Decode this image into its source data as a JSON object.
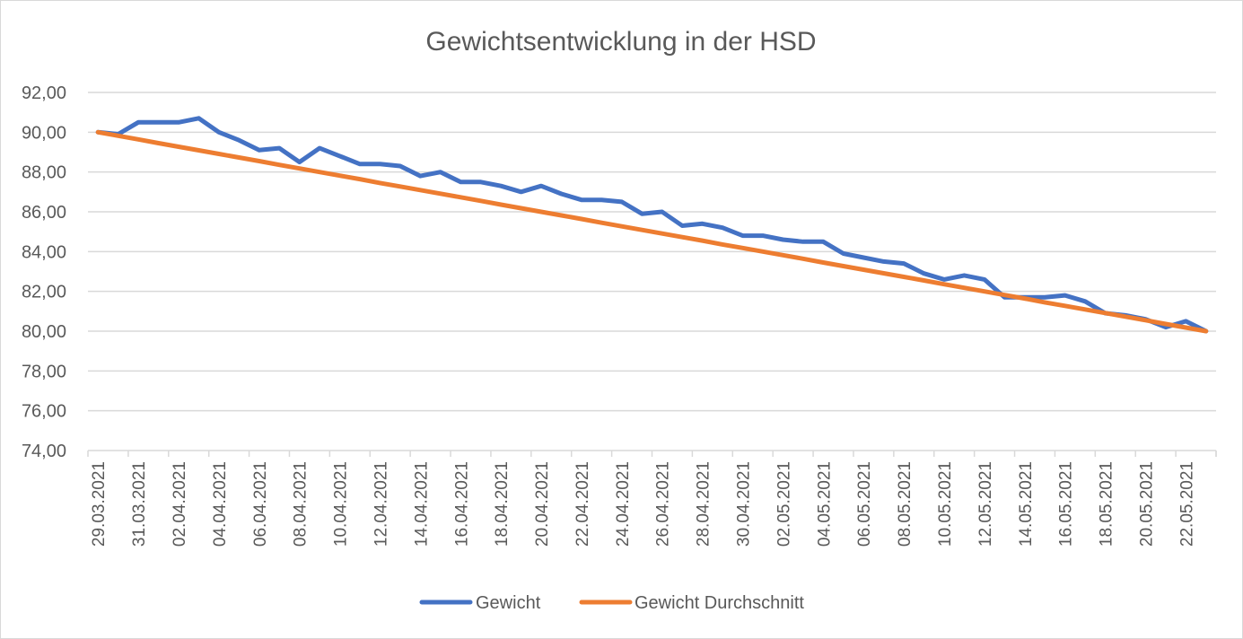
{
  "chart_data": {
    "type": "line",
    "title": "Gewichtsentwicklung in der HSD",
    "xlabel": "",
    "ylabel": "",
    "ylim": [
      74,
      92
    ],
    "y_ticks": [
      "74,00",
      "76,00",
      "78,00",
      "80,00",
      "82,00",
      "84,00",
      "86,00",
      "88,00",
      "90,00",
      "92,00"
    ],
    "y_tick_values": [
      74,
      76,
      78,
      80,
      82,
      84,
      86,
      88,
      90,
      92
    ],
    "grid": true,
    "legend_position": "bottom",
    "x": [
      "29.03.2021",
      "30.03.2021",
      "31.03.2021",
      "01.04.2021",
      "02.04.2021",
      "03.04.2021",
      "04.04.2021",
      "05.04.2021",
      "06.04.2021",
      "07.04.2021",
      "08.04.2021",
      "09.04.2021",
      "10.04.2021",
      "11.04.2021",
      "12.04.2021",
      "13.04.2021",
      "14.04.2021",
      "15.04.2021",
      "16.04.2021",
      "17.04.2021",
      "18.04.2021",
      "19.04.2021",
      "20.04.2021",
      "21.04.2021",
      "22.04.2021",
      "23.04.2021",
      "24.04.2021",
      "25.04.2021",
      "26.04.2021",
      "27.04.2021",
      "28.04.2021",
      "29.04.2021",
      "30.04.2021",
      "01.05.2021",
      "02.05.2021",
      "03.05.2021",
      "04.05.2021",
      "05.05.2021",
      "06.05.2021",
      "07.05.2021",
      "08.05.2021",
      "09.05.2021",
      "10.05.2021",
      "11.05.2021",
      "12.05.2021",
      "13.05.2021",
      "14.05.2021",
      "15.05.2021",
      "16.05.2021",
      "17.05.2021",
      "18.05.2021",
      "19.05.2021",
      "20.05.2021",
      "21.05.2021",
      "22.05.2021",
      "23.05.2021"
    ],
    "x_label_every": 2,
    "series": [
      {
        "name": "Gewicht",
        "color": "#4472c4",
        "values": [
          90.0,
          89.9,
          90.5,
          90.5,
          90.5,
          90.7,
          90.0,
          89.6,
          89.1,
          89.2,
          88.5,
          89.2,
          88.8,
          88.4,
          88.4,
          88.3,
          87.8,
          88.0,
          87.5,
          87.5,
          87.3,
          87.0,
          87.3,
          86.9,
          86.6,
          86.6,
          86.5,
          85.9,
          86.0,
          85.3,
          85.4,
          85.2,
          84.8,
          84.8,
          84.6,
          84.5,
          84.5,
          83.9,
          83.7,
          83.5,
          83.4,
          82.9,
          82.6,
          82.8,
          82.6,
          81.7,
          81.7,
          81.7,
          81.8,
          81.5,
          80.9,
          80.8,
          80.6,
          80.2,
          80.5,
          80.0
        ]
      },
      {
        "name": "Gewicht Durchschnitt",
        "color": "#ed7d31",
        "values": [
          90.0,
          89.82,
          89.64,
          89.45,
          89.27,
          89.09,
          88.91,
          88.73,
          88.55,
          88.36,
          88.18,
          88.0,
          87.82,
          87.64,
          87.45,
          87.27,
          87.09,
          86.91,
          86.73,
          86.55,
          86.36,
          86.18,
          86.0,
          85.82,
          85.64,
          85.45,
          85.27,
          85.09,
          84.91,
          84.73,
          84.55,
          84.36,
          84.18,
          84.0,
          83.82,
          83.64,
          83.45,
          83.27,
          83.09,
          82.91,
          82.73,
          82.55,
          82.36,
          82.18,
          82.0,
          81.82,
          81.64,
          81.45,
          81.27,
          81.09,
          80.91,
          80.73,
          80.55,
          80.36,
          80.18,
          80.0
        ]
      }
    ]
  }
}
